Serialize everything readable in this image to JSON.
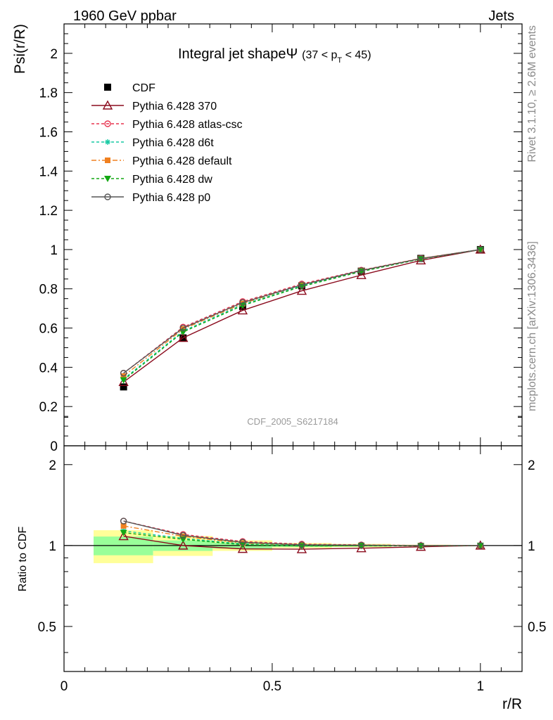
{
  "header": {
    "left": "1960 GeV ppbar",
    "right": "Jets"
  },
  "side_labels": {
    "rivet": "Rivet 3.1.10, ≥ 2.6M events",
    "mcplots": "mcplots.cern.ch [arXiv:1306.3436]"
  },
  "chart_data": {
    "type": "line",
    "title_main": "Integral jet shapeΨ",
    "title_sub": "(37 < p",
    "title_sub_index": "T",
    "title_sub_end": " < 45)",
    "watermark": "CDF_2005_S6217184",
    "xlabel": "r/R",
    "ylabel": "Psi(r/R)",
    "ratio_ylabel": "Ratio to CDF",
    "xlim": [
      0,
      1.1
    ],
    "ylim": [
      0,
      2.15
    ],
    "ratio_ylim": [
      0.34,
      2.35
    ],
    "ratio_log_scale": true,
    "x_tick_labels": [
      "0",
      "0.5",
      "1"
    ],
    "y_tick_labels": [
      "0",
      "0.2",
      "0.4",
      "0.6",
      "0.8",
      "1",
      "1.2",
      "1.4",
      "1.6",
      "1.8",
      "2"
    ],
    "ratio_tick_labels": [
      "0.5",
      "1",
      "2"
    ],
    "legend_position": "top-left",
    "x": [
      0.143,
      0.286,
      0.429,
      0.571,
      0.714,
      0.857,
      1.0
    ],
    "data": {
      "name": "CDF",
      "color": "#000000",
      "values": [
        0.3,
        0.55,
        0.71,
        0.815,
        0.89,
        0.955,
        1.0
      ],
      "bins": [
        [
          0.071,
          0.214
        ],
        [
          0.214,
          0.357
        ],
        [
          0.357,
          0.5
        ],
        [
          0.5,
          0.643
        ],
        [
          0.643,
          0.786
        ],
        [
          0.786,
          0.929
        ],
        [
          0.929,
          1.071
        ]
      ],
      "band_inner": [
        0.08,
        0.045,
        0.025,
        0.012,
        0.008,
        0.004,
        0.001
      ],
      "band_outer": [
        0.14,
        0.085,
        0.045,
        0.022,
        0.014,
        0.007,
        0.002
      ]
    },
    "series": [
      {
        "name": "Pythia 6.428 370",
        "color": "#8b0c1e",
        "dash": "solid",
        "marker": "triangle-open",
        "values": [
          0.325,
          0.55,
          0.69,
          0.79,
          0.87,
          0.945,
          1.0
        ]
      },
      {
        "name": "Pythia 6.428 atlas-csc",
        "color": "#e8334f",
        "dash": "dashed",
        "marker": "circle-open",
        "values": [
          0.37,
          0.605,
          0.735,
          0.825,
          0.895,
          0.955,
          1.0
        ]
      },
      {
        "name": "Pythia 6.428 d6t",
        "color": "#17c9a3",
        "dash": "dashed",
        "marker": "star",
        "values": [
          0.34,
          0.585,
          0.72,
          0.815,
          0.89,
          0.953,
          1.0
        ]
      },
      {
        "name": "Pythia 6.428 default",
        "color": "#f08020",
        "dash": "dashdot",
        "marker": "square",
        "values": [
          0.355,
          0.595,
          0.725,
          0.82,
          0.893,
          0.955,
          1.0
        ]
      },
      {
        "name": "Pythia 6.428 dw",
        "color": "#13a813",
        "dash": "dashed",
        "marker": "triangle-down",
        "values": [
          0.335,
          0.58,
          0.715,
          0.812,
          0.888,
          0.952,
          1.0
        ]
      },
      {
        "name": "Pythia 6.428 p0",
        "color": "#555555",
        "dash": "solid",
        "marker": "circle-open",
        "values": [
          0.37,
          0.6,
          0.73,
          0.82,
          0.893,
          0.954,
          1.0
        ]
      }
    ]
  }
}
